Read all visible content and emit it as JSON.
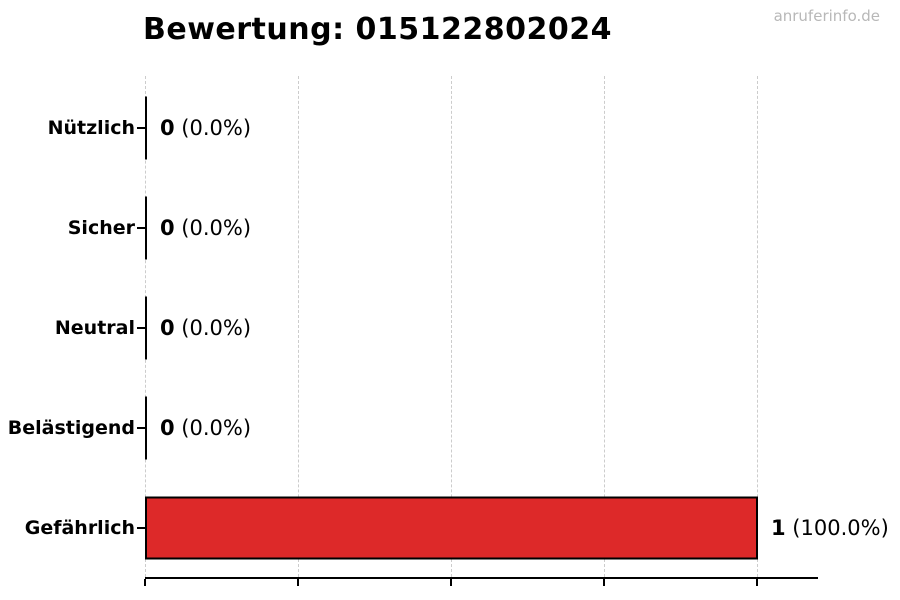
{
  "page": {
    "background": "#ffffff"
  },
  "header": {
    "title": "Bewertung: 015122802024",
    "watermark": "anruferinfo.de"
  },
  "chart_data": {
    "type": "bar",
    "orientation": "horizontal",
    "title": "Bewertung: 015122802024",
    "categories": [
      "Nützlich",
      "Sicher",
      "Neutral",
      "Belästigend",
      "Gefährlich"
    ],
    "values": [
      0,
      0,
      0,
      0,
      1
    ],
    "percentages": [
      0.0,
      0.0,
      0.0,
      0.0,
      100.0
    ],
    "value_labels": [
      {
        "count": "0",
        "percent": "(0.0%)"
      },
      {
        "count": "0",
        "percent": "(0.0%)"
      },
      {
        "count": "0",
        "percent": "(0.0%)"
      },
      {
        "count": "0",
        "percent": "(0.0%)"
      },
      {
        "count": "1",
        "percent": "(100.0%)"
      }
    ],
    "xlabel": "",
    "ylabel": "",
    "xlim": [
      0,
      1
    ],
    "x_ticks": [
      0,
      0.25,
      0.5,
      0.75,
      1.0
    ],
    "x_tick_labels_visible": false,
    "grid": {
      "axis": "x",
      "style": "dashed",
      "color": "#cccccc"
    },
    "legend": "none",
    "bar_color": "#dd2929",
    "bar_edge_color": "#000000",
    "zero_bar_style": "black edge line at axis"
  }
}
